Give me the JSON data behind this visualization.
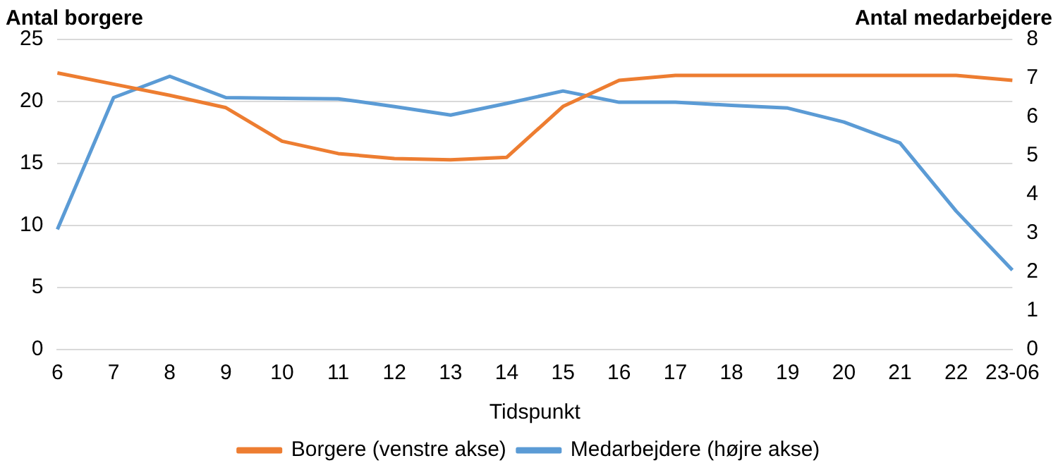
{
  "chart_data": {
    "type": "line",
    "xlabel": "Tidspunkt",
    "ylabel": "Antal borgere",
    "y2label": "Antal medarbejdere",
    "categories": [
      "6",
      "7",
      "8",
      "9",
      "10",
      "11",
      "12",
      "13",
      "14",
      "15",
      "16",
      "17",
      "18",
      "19",
      "20",
      "21",
      "22",
      "23-06"
    ],
    "series": [
      {
        "name": "Borgere (venstre akse)",
        "color": "#ed7d31",
        "values": [
          22.3,
          21.4,
          20.5,
          19.5,
          16.8,
          15.8,
          15.4,
          15.3,
          15.5,
          19.6,
          21.7,
          22.1,
          22.1,
          22.1,
          22.1,
          22.1,
          22.1,
          21.7
        ]
      },
      {
        "name": "Medarbejdere (højre akse)",
        "color": "#5b9bd5",
        "axis": "y2",
        "values": [
          3.1,
          6.5,
          7.05,
          6.5,
          6.48,
          6.47,
          6.27,
          6.05,
          6.35,
          6.67,
          6.38,
          6.38,
          6.3,
          6.23,
          5.87,
          5.33,
          3.57,
          2.05
        ]
      }
    ],
    "ylim": [
      0,
      25
    ],
    "yticks": [
      0,
      5,
      10,
      15,
      20,
      25
    ],
    "y2lim": [
      0,
      8
    ],
    "y2ticks": [
      0,
      1,
      2,
      3,
      4,
      5,
      6,
      7,
      8
    ],
    "grid": "y",
    "legend": "bottom",
    "marker": "none",
    "line_style": "solid"
  }
}
